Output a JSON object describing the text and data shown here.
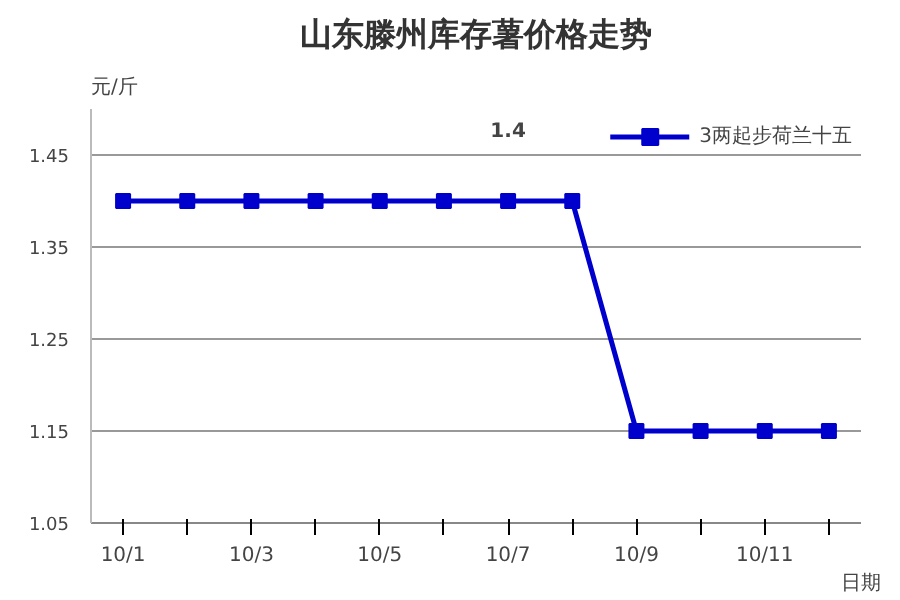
{
  "chart_data": {
    "type": "line",
    "title": "山东滕州库存薯价格走势",
    "ylabel": "元/斤",
    "xlabel": "日期",
    "categories": [
      "10/1",
      null,
      "10/3",
      null,
      "10/5",
      null,
      "10/7",
      null,
      "10/9",
      null,
      "10/11",
      null
    ],
    "series": [
      {
        "name": "3两起步荷兰十五",
        "color": "#0000cc",
        "values": [
          1.4,
          1.4,
          1.4,
          1.4,
          1.4,
          1.4,
          1.4,
          1.4,
          1.15,
          1.15,
          1.15,
          1.15
        ]
      }
    ],
    "ylim": [
      1.05,
      1.5
    ],
    "yticks": [
      1.05,
      1.15,
      1.25,
      1.35,
      1.45
    ],
    "annotations": [
      "1.4"
    ],
    "grid": "y",
    "legend": "top right",
    "marker": "square",
    "line_style": "solid"
  }
}
